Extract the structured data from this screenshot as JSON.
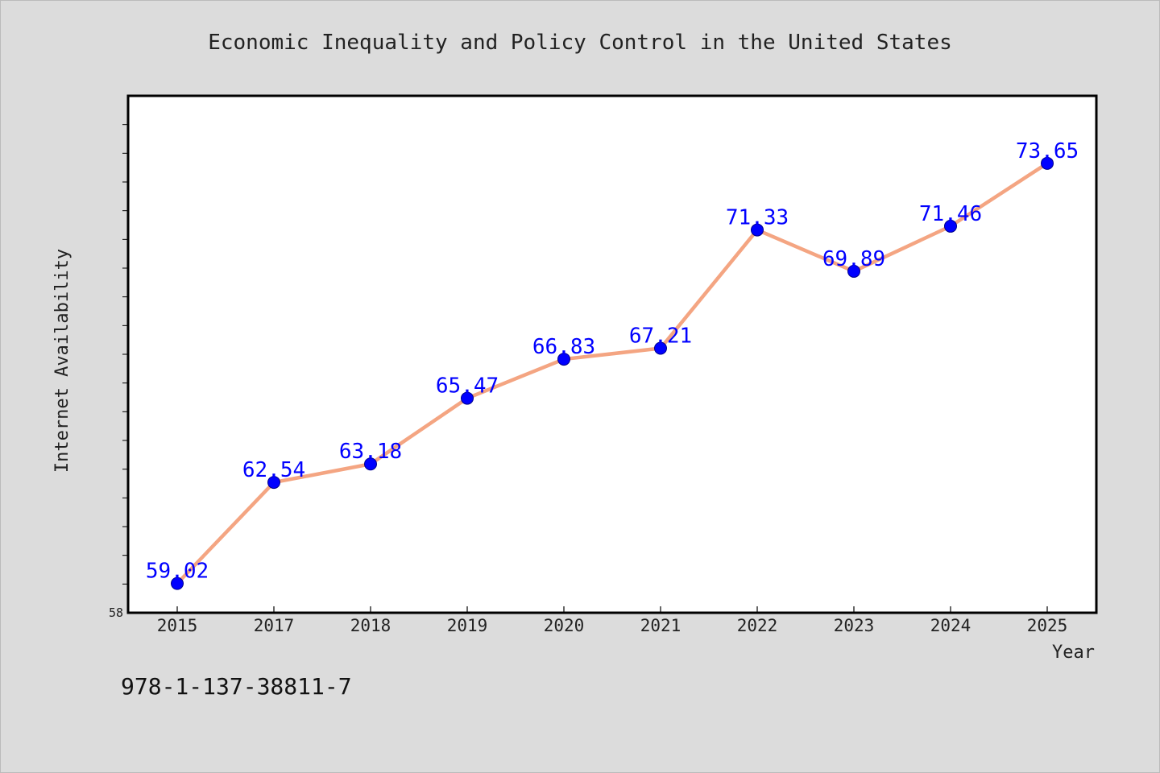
{
  "chart_data": {
    "type": "line",
    "title": "Economic Inequality and Policy Control in the United States",
    "xlabel": "Year",
    "ylabel": "Internet Availability",
    "categories": [
      "2015",
      "2017",
      "2018",
      "2019",
      "2020",
      "2021",
      "2022",
      "2023",
      "2024",
      "2025"
    ],
    "series": [
      {
        "values": [
          59.02,
          62.54,
          63.18,
          65.47,
          66.83,
          67.21,
          71.33,
          69.89,
          71.46,
          73.65
        ],
        "labels": [
          "59.02",
          "62.54",
          "63.18",
          "65.47",
          "66.83",
          "67.21",
          "71.33",
          "69.89",
          "71.46",
          "73.65"
        ]
      }
    ],
    "y_tick_labels": [
      "58"
    ],
    "ylim": [
      58,
      76
    ],
    "grid": false,
    "legend": "none",
    "colors": {
      "background": "#dcdcdc",
      "plot_background": "#ffffff",
      "line": "#f4a582",
      "marker": "#0000ff",
      "data_label": "#0000ff",
      "text": "#222222"
    }
  },
  "footer_code": "978-1-137-38811-7"
}
